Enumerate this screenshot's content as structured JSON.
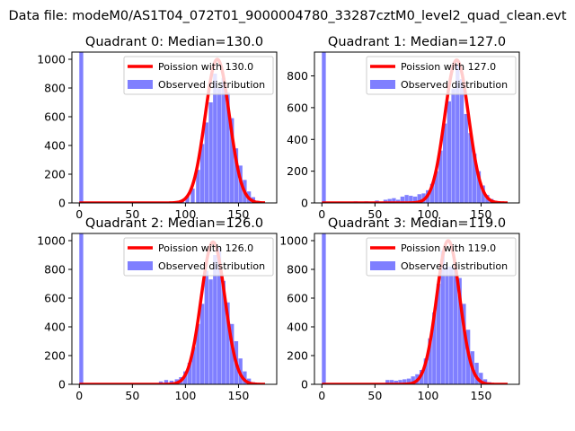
{
  "suptitle": "Data file: modeM0/AS1T04_072T01_9000004780_33287cztM0_level2_quad_clean.evt",
  "colors": {
    "poisson": "#ff0000",
    "observed": "#7f7fff",
    "axis": "#000000",
    "background": "#ffffff"
  },
  "chart_data": [
    {
      "type": "histogram",
      "title": "Quadrant 0: Median=130.0",
      "xlim": [
        -7,
        186
      ],
      "ylim": [
        0,
        1050
      ],
      "xticks": [
        0,
        50,
        100,
        150
      ],
      "yticks": [
        0,
        200,
        400,
        600,
        800,
        1000
      ],
      "legend": {
        "location": "upper right",
        "entries": [
          "Poission with 130.0",
          "Observed distribution"
        ]
      },
      "poisson_mean": 130.0,
      "bin_width": 3.7,
      "bins_x": [
        0,
        85,
        90,
        95,
        100,
        105,
        110,
        114,
        118,
        122,
        126,
        130,
        134,
        138,
        142,
        146,
        150,
        154,
        158,
        162,
        166,
        170,
        174
      ],
      "bins_y": [
        1050,
        5,
        10,
        20,
        50,
        100,
        230,
        410,
        560,
        700,
        900,
        800,
        870,
        770,
        590,
        380,
        260,
        160,
        80,
        40,
        15,
        8,
        2
      ],
      "peak_y": 1000
    },
    {
      "type": "histogram",
      "title": "Quadrant 1: Median=127.0",
      "xlim": [
        -7,
        186
      ],
      "ylim": [
        0,
        950
      ],
      "xticks": [
        0,
        50,
        100,
        150
      ],
      "yticks": [
        0,
        200,
        400,
        600,
        800
      ],
      "legend": {
        "location": "upper right",
        "entries": [
          "Poission with 127.0",
          "Observed distribution"
        ]
      },
      "poisson_mean": 127.0,
      "bin_width": 3.7,
      "bins_x": [
        0,
        10,
        20,
        30,
        40,
        50,
        58,
        62,
        66,
        70,
        74,
        78,
        82,
        86,
        90,
        94,
        98,
        102,
        106,
        110,
        114,
        118,
        122,
        126,
        130,
        134,
        138,
        142,
        146,
        150,
        154,
        158,
        162,
        166,
        170
      ],
      "bins_y": [
        950,
        5,
        5,
        10,
        10,
        15,
        20,
        25,
        30,
        20,
        40,
        50,
        45,
        40,
        55,
        60,
        80,
        120,
        200,
        330,
        500,
        640,
        720,
        870,
        780,
        560,
        440,
        310,
        200,
        110,
        50,
        25,
        12,
        6,
        3
      ],
      "peak_y": 900
    },
    {
      "type": "histogram",
      "title": "Quadrant 2: Median=126.0",
      "xlim": [
        -7,
        186
      ],
      "ylim": [
        0,
        1050
      ],
      "xticks": [
        0,
        50,
        100,
        150
      ],
      "yticks": [
        0,
        200,
        400,
        600,
        800,
        1000
      ],
      "legend": {
        "location": "upper right",
        "entries": [
          "Poission with 126.0",
          "Observed distribution"
        ]
      },
      "poisson_mean": 126.0,
      "bin_width": 3.7,
      "bins_x": [
        0,
        75,
        80,
        85,
        90,
        94,
        98,
        102,
        106,
        110,
        114,
        118,
        122,
        126,
        130,
        134,
        138,
        142,
        146,
        150,
        154,
        158,
        162,
        166,
        170
      ],
      "bins_y": [
        1050,
        20,
        30,
        25,
        35,
        50,
        90,
        150,
        260,
        420,
        560,
        790,
        730,
        900,
        950,
        720,
        570,
        420,
        300,
        180,
        90,
        40,
        15,
        6,
        2
      ],
      "peak_y": 990
    },
    {
      "type": "histogram",
      "title": "Quadrant 3: Median=119.0",
      "xlim": [
        -7,
        186
      ],
      "ylim": [
        0,
        1050
      ],
      "xticks": [
        0,
        50,
        100,
        150
      ],
      "yticks": [
        0,
        200,
        400,
        600,
        800,
        1000
      ],
      "legend": {
        "location": "upper right",
        "entries": [
          "Poission with 119.0",
          "Observed distribution"
        ]
      },
      "poisson_mean": 119.0,
      "bin_width": 3.7,
      "bins_x": [
        0,
        60,
        64,
        68,
        72,
        76,
        80,
        84,
        88,
        92,
        96,
        100,
        104,
        108,
        112,
        116,
        120,
        124,
        128,
        132,
        136,
        140,
        144,
        148,
        152,
        156,
        160,
        164
      ],
      "bins_y": [
        1050,
        30,
        30,
        25,
        30,
        35,
        40,
        55,
        70,
        100,
        180,
        320,
        500,
        700,
        930,
        820,
        820,
        800,
        740,
        560,
        380,
        230,
        150,
        80,
        35,
        15,
        6,
        2
      ],
      "peak_y": 1000
    }
  ]
}
